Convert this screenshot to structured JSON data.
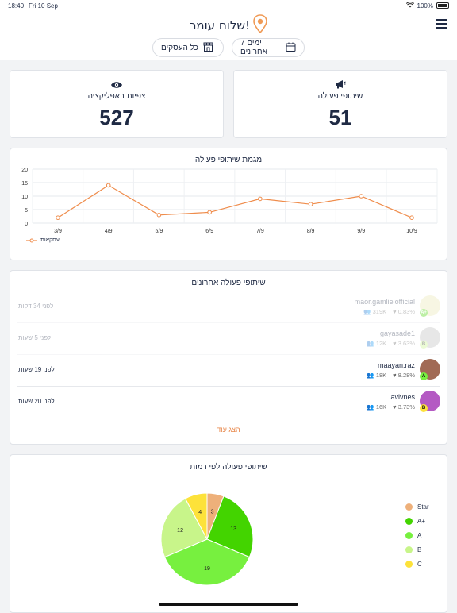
{
  "status": {
    "time": "18:40",
    "date": "Fri 10 Sep",
    "battery": "100%"
  },
  "header": {
    "greeting": "שלום עומר!",
    "filter_period": "7 ימים אחרונים",
    "filter_business": "כל העסקים"
  },
  "kpis": {
    "shares": {
      "title": "שיתופי פעולה",
      "value": "51"
    },
    "views": {
      "title": "צפיות באפליקציה",
      "value": "527"
    }
  },
  "chart_section": {
    "title": "מגמת שיתופי פעולה",
    "legend": "עסקאות"
  },
  "chart_data": {
    "type": "line",
    "title": "מגמת שיתופי פעולה",
    "categories": [
      "3/9",
      "4/9",
      "5/9",
      "6/9",
      "7/9",
      "8/9",
      "9/9",
      "10/9"
    ],
    "series": [
      {
        "name": "עסקאות",
        "values": [
          2,
          14,
          3,
          4,
          9,
          7,
          10,
          2
        ]
      }
    ],
    "yticks": [
      "0",
      "5",
      "10",
      "15",
      "20"
    ],
    "ylim": [
      0,
      20
    ],
    "color": "#ef8c4b"
  },
  "recent": {
    "title": "שיתופי פעולה אחרונים",
    "more": "הצג עוד",
    "items": [
      {
        "name": "maor.gamlielofficial",
        "engagement": "0.83%",
        "followers": "319K",
        "time": "לפני 34 דקות",
        "badge": "A+"
      },
      {
        "name": "gayasade1",
        "engagement": "3.63%",
        "followers": "12K",
        "time": "לפני 5 שעות",
        "badge": "B"
      },
      {
        "name": "maayan.raz",
        "engagement": "8.28%",
        "followers": "18K",
        "time": "לפני 19 שעות",
        "badge": "A"
      },
      {
        "name": "avivnes",
        "engagement": "3.73%",
        "followers": "16K",
        "time": "לפני 20 שעות",
        "badge": "B"
      }
    ]
  },
  "levels": {
    "title": "שיתופי פעולה לפי רמות",
    "legend": [
      {
        "label": "Star",
        "color": "#eeb07a"
      },
      {
        "label": "A+",
        "color": "#43d400"
      },
      {
        "label": "A",
        "color": "#77f03f"
      },
      {
        "label": "B",
        "color": "#c8f58a"
      },
      {
        "label": "C",
        "color": "#fde23a"
      }
    ],
    "slices": [
      {
        "label": "Star",
        "value": 3,
        "color": "#eeb07a"
      },
      {
        "label": "A+",
        "value": 13,
        "color": "#43d400"
      },
      {
        "label": "A",
        "value": 19,
        "color": "#77f03f"
      },
      {
        "label": "B",
        "value": 12,
        "color": "#c8f58a"
      },
      {
        "label": "C",
        "value": 4,
        "color": "#fde23a"
      }
    ]
  }
}
